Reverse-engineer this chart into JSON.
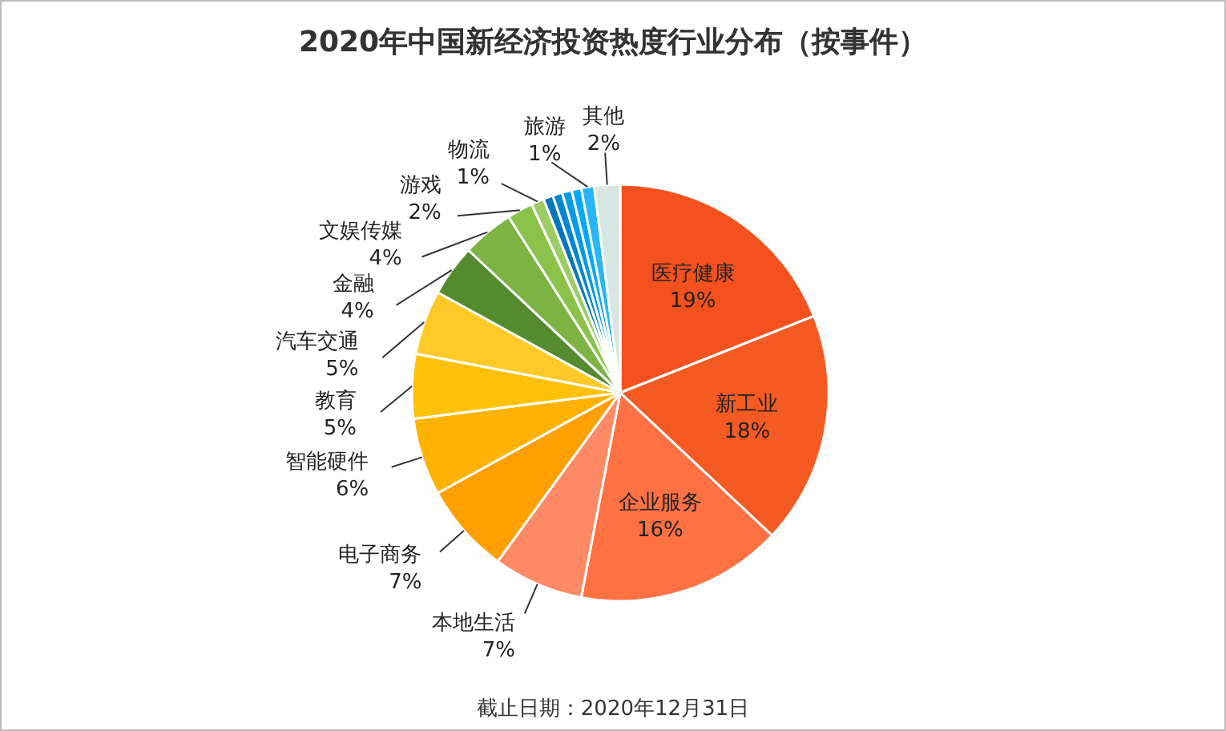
{
  "chart_data": {
    "type": "pie",
    "title": "2020年中国新经济投资热度行业分布（按事件）",
    "categories": [
      "医疗健康",
      "新工业",
      "企业服务",
      "本地生活",
      "电子商务",
      "智能硬件",
      "教育",
      "汽车交通",
      "金融",
      "文娱传媒",
      "游戏",
      "物流",
      null,
      null,
      null,
      null,
      "旅游",
      "其他"
    ],
    "values": [
      19,
      18,
      16,
      7,
      7,
      6,
      5,
      5,
      4,
      4,
      2,
      1,
      0.75,
      0.75,
      0.75,
      0.75,
      1,
      2
    ],
    "value_labels": [
      "19%",
      "18%",
      "16%",
      "7%",
      "7%",
      "6%",
      "5%",
      "5%",
      "4%",
      "4%",
      "2%",
      "1%",
      null,
      null,
      null,
      null,
      "1%",
      "2%"
    ],
    "colors": [
      "#f4511e",
      "#f55a22",
      "#ff7043",
      "#ff8a65",
      "#ffa000",
      "#ffb300",
      "#ffc107",
      "#ffca28",
      "#558b2f",
      "#7cb342",
      "#8bc34a",
      "#9ccc65",
      "#0277bd",
      "#0288d1",
      "#039be5",
      "#03a9f4",
      "#29b6f6",
      "#d7e6e2"
    ],
    "annotations": [
      "截止日期：2020年12月31日"
    ]
  }
}
